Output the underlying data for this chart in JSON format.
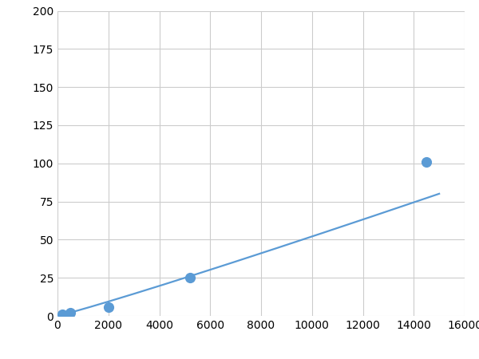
{
  "x_points": [
    200,
    500,
    2000,
    5200,
    14500
  ],
  "y_points": [
    1.0,
    2.2,
    6.0,
    25.0,
    101.0
  ],
  "line_color": "#5b9bd5",
  "marker_color": "#5b9bd5",
  "marker_size": 6,
  "line_width": 1.6,
  "xlim": [
    0,
    16000
  ],
  "ylim": [
    0,
    200
  ],
  "xticks": [
    0,
    2000,
    4000,
    6000,
    8000,
    10000,
    12000,
    14000,
    16000
  ],
  "yticks": [
    0,
    25,
    50,
    75,
    100,
    125,
    150,
    175,
    200
  ],
  "grid_color": "#cccccc",
  "background_color": "#ffffff",
  "figure_background": "#ffffff"
}
